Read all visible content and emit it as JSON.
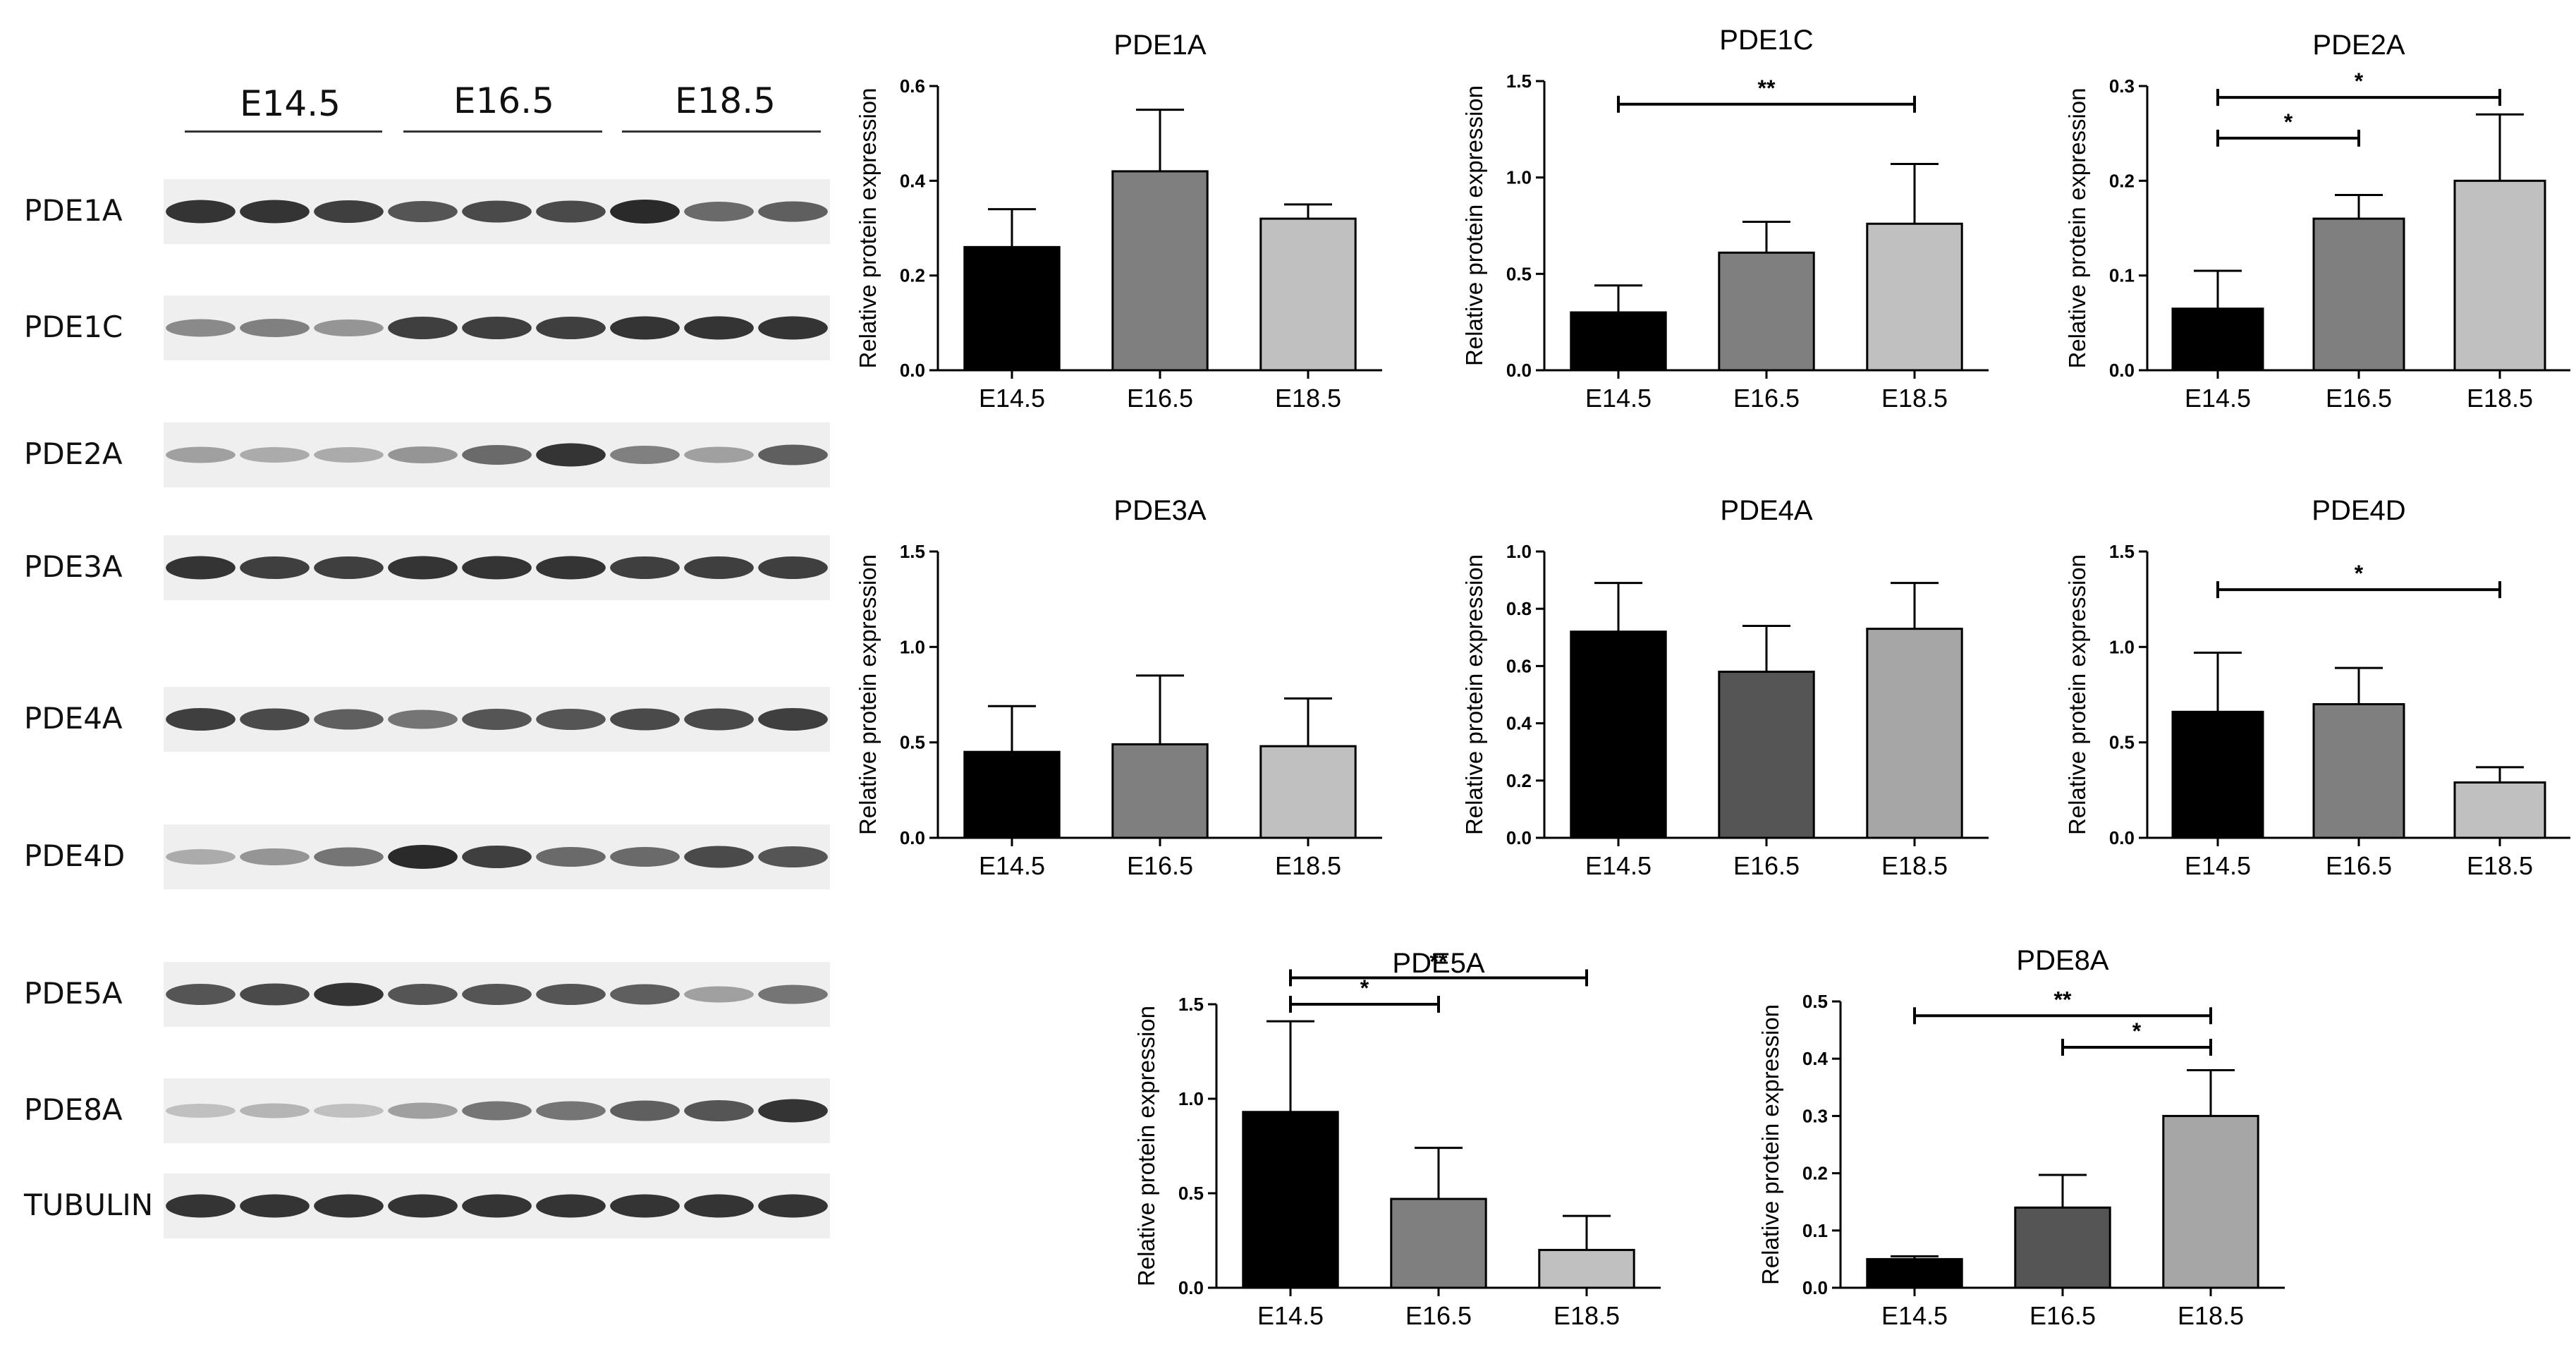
{
  "blot": {
    "stages": [
      "E14.5",
      "E16.5",
      "E18.5"
    ],
    "rows": [
      {
        "label": "PDE1A",
        "bands": [
          0.85,
          0.85,
          0.8,
          0.7,
          0.75,
          0.75,
          0.9,
          0.6,
          0.65
        ]
      },
      {
        "label": "PDE1C",
        "bands": [
          0.45,
          0.5,
          0.4,
          0.8,
          0.8,
          0.8,
          0.85,
          0.85,
          0.85
        ]
      },
      {
        "label": "PDE2A",
        "bands": [
          0.35,
          0.3,
          0.3,
          0.4,
          0.6,
          0.85,
          0.5,
          0.35,
          0.65
        ]
      },
      {
        "label": "PDE3A",
        "bands": [
          0.85,
          0.8,
          0.8,
          0.85,
          0.85,
          0.85,
          0.8,
          0.8,
          0.8
        ]
      },
      {
        "label": "PDE4A",
        "bands": [
          0.8,
          0.75,
          0.65,
          0.55,
          0.7,
          0.7,
          0.75,
          0.75,
          0.8
        ]
      },
      {
        "label": "PDE4D",
        "bands": [
          0.3,
          0.4,
          0.55,
          0.9,
          0.8,
          0.6,
          0.6,
          0.75,
          0.7
        ]
      },
      {
        "label": "PDE5A",
        "bands": [
          0.7,
          0.75,
          0.85,
          0.7,
          0.7,
          0.7,
          0.65,
          0.35,
          0.55
        ]
      },
      {
        "label": "PDE8A",
        "bands": [
          0.2,
          0.25,
          0.2,
          0.35,
          0.55,
          0.55,
          0.65,
          0.7,
          0.85
        ]
      },
      {
        "label": "TUBULIN",
        "bands": [
          0.85,
          0.85,
          0.85,
          0.85,
          0.85,
          0.85,
          0.85,
          0.85,
          0.85
        ]
      }
    ]
  },
  "colors": {
    "e14": "#000000",
    "e16": "#7f7f7f",
    "e16_dark": "#555555",
    "e18": "#c0c0c0",
    "e18_mid": "#a6a6a6"
  },
  "chart_data": [
    {
      "type": "bar",
      "title": "PDE1A",
      "ylabel": "Relative protein expression",
      "categories": [
        "E14.5",
        "E16.5",
        "E18.5"
      ],
      "values": [
        0.26,
        0.42,
        0.32
      ],
      "errors": [
        0.08,
        0.13,
        0.03
      ],
      "ylim": [
        0,
        0.6
      ],
      "yticks": [
        "0.0",
        "0.2",
        "0.4",
        "0.6"
      ],
      "fills": [
        "e14",
        "e16",
        "e18"
      ],
      "significance": []
    },
    {
      "type": "bar",
      "title": "PDE1C",
      "ylabel": "Relative protein expression",
      "categories": [
        "E14.5",
        "E16.5",
        "E18.5"
      ],
      "values": [
        0.3,
        0.61,
        0.76
      ],
      "errors": [
        0.14,
        0.16,
        0.31
      ],
      "ylim": [
        0,
        1.5
      ],
      "yticks": [
        "0.0",
        "0.5",
        "1.0",
        "1.5"
      ],
      "fills": [
        "e14",
        "e16",
        "e18"
      ],
      "significance": [
        {
          "from": 0,
          "to": 2,
          "label": "**",
          "level": 1.38
        }
      ]
    },
    {
      "type": "bar",
      "title": "PDE2A",
      "ylabel": "Relative protein expression",
      "categories": [
        "E14.5",
        "E16.5",
        "E18.5"
      ],
      "values": [
        0.065,
        0.16,
        0.2
      ],
      "errors": [
        0.04,
        0.025,
        0.07
      ],
      "ylim": [
        0,
        0.3
      ],
      "yticks": [
        "0.0",
        "0.1",
        "0.2",
        "0.3"
      ],
      "fills": [
        "e14",
        "e16",
        "e18"
      ],
      "significance": [
        {
          "from": 0,
          "to": 2,
          "label": "*",
          "level": 0.288
        },
        {
          "from": 0,
          "to": 1,
          "label": "*",
          "level": 0.245
        }
      ]
    },
    {
      "type": "bar",
      "title": "PDE3A",
      "ylabel": "Relative protein expression",
      "categories": [
        "E14.5",
        "E16.5",
        "E18.5"
      ],
      "values": [
        0.45,
        0.49,
        0.48
      ],
      "errors": [
        0.24,
        0.36,
        0.25
      ],
      "ylim": [
        0,
        1.5
      ],
      "yticks": [
        "0.0",
        "0.5",
        "1.0",
        "1.5"
      ],
      "fills": [
        "e14",
        "e16",
        "e18"
      ],
      "significance": []
    },
    {
      "type": "bar",
      "title": "PDE4A",
      "ylabel": "Relative protein expression",
      "categories": [
        "E14.5",
        "E16.5",
        "E18.5"
      ],
      "values": [
        0.72,
        0.58,
        0.73
      ],
      "errors": [
        0.17,
        0.16,
        0.16
      ],
      "ylim": [
        0,
        1.0
      ],
      "yticks": [
        "0.0",
        "0.2",
        "0.4",
        "0.6",
        "0.8",
        "1.0"
      ],
      "fills": [
        "e14",
        "e16_dark",
        "e18_mid"
      ],
      "significance": []
    },
    {
      "type": "bar",
      "title": "PDE4D",
      "ylabel": "Relative protein expression",
      "categories": [
        "E14.5",
        "E16.5",
        "E18.5"
      ],
      "values": [
        0.66,
        0.7,
        0.29
      ],
      "errors": [
        0.31,
        0.19,
        0.08
      ],
      "ylim": [
        0,
        1.5
      ],
      "yticks": [
        "0.0",
        "0.5",
        "1.0",
        "1.5"
      ],
      "fills": [
        "e14",
        "e16",
        "e18"
      ],
      "significance": [
        {
          "from": 0,
          "to": 2,
          "label": "*",
          "level": 1.3
        }
      ]
    },
    {
      "type": "bar",
      "title": "PDE5A",
      "ylabel": "Relative protein expression",
      "categories": [
        "E14.5",
        "E16.5",
        "E18.5"
      ],
      "values": [
        0.93,
        0.47,
        0.2
      ],
      "errors": [
        0.48,
        0.27,
        0.18
      ],
      "ylim": [
        0,
        1.5
      ],
      "yticks": [
        "0.0",
        "0.5",
        "1.0",
        "1.5"
      ],
      "fills": [
        "e14",
        "e16",
        "e18"
      ],
      "significance": [
        {
          "from": 0,
          "to": 2,
          "label": "**",
          "level": 1.64
        },
        {
          "from": 0,
          "to": 1,
          "label": "*",
          "level": 1.5
        }
      ]
    },
    {
      "type": "bar",
      "title": "PDE8A",
      "ylabel": "Relative protein expression",
      "categories": [
        "E14.5",
        "E16.5",
        "E18.5"
      ],
      "values": [
        0.05,
        0.14,
        0.3
      ],
      "errors": [
        0.005,
        0.057,
        0.08
      ],
      "ylim": [
        0,
        0.5
      ],
      "yticks": [
        "0.0",
        "0.1",
        "0.2",
        "0.3",
        "0.4",
        "0.5"
      ],
      "fills": [
        "e14",
        "e16_dark",
        "e18_mid"
      ],
      "significance": [
        {
          "from": 0,
          "to": 2,
          "label": "**",
          "level": 0.475
        },
        {
          "from": 1,
          "to": 2,
          "label": "*",
          "level": 0.42
        }
      ]
    }
  ]
}
